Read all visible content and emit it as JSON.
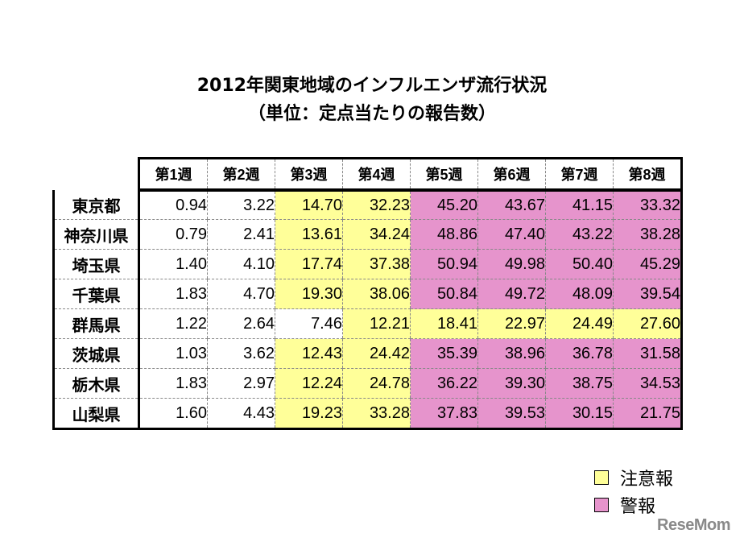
{
  "title": {
    "line1": "2012年関東地域のインフルエンザ流行状況",
    "line2": "（単位：定点当たりの報告数）"
  },
  "colors": {
    "caution": "#ffff99",
    "warning": "#e694cc",
    "normal": "#ffffff"
  },
  "legend": [
    {
      "label": "注意報",
      "color": "#ffff99"
    },
    {
      "label": "警報",
      "color": "#e694cc"
    }
  ],
  "watermark": "ReseMom",
  "chart_data": {
    "type": "table",
    "title": "2012年関東地域のインフルエンザ流行状況（単位：定点当たりの報告数）",
    "columns": [
      "第1週",
      "第2週",
      "第3週",
      "第4週",
      "第5週",
      "第6週",
      "第7週",
      "第8週"
    ],
    "rows": [
      {
        "name": "東京都",
        "values": [
          "0.94",
          "3.22",
          "14.70",
          "32.23",
          "45.20",
          "43.67",
          "41.15",
          "33.32"
        ],
        "levels": [
          "n",
          "n",
          "c",
          "c",
          "w",
          "w",
          "w",
          "w"
        ]
      },
      {
        "name": "神奈川県",
        "values": [
          "0.79",
          "2.41",
          "13.61",
          "34.24",
          "48.86",
          "47.40",
          "43.22",
          "38.28"
        ],
        "levels": [
          "n",
          "n",
          "c",
          "c",
          "w",
          "w",
          "w",
          "w"
        ]
      },
      {
        "name": "埼玉県",
        "values": [
          "1.40",
          "4.10",
          "17.74",
          "37.38",
          "50.94",
          "49.98",
          "50.40",
          "45.29"
        ],
        "levels": [
          "n",
          "n",
          "c",
          "c",
          "w",
          "w",
          "w",
          "w"
        ]
      },
      {
        "name": "千葉県",
        "values": [
          "1.83",
          "4.70",
          "19.30",
          "38.06",
          "50.84",
          "49.72",
          "48.09",
          "39.54"
        ],
        "levels": [
          "n",
          "n",
          "c",
          "c",
          "w",
          "w",
          "w",
          "w"
        ]
      },
      {
        "name": "群馬県",
        "values": [
          "1.22",
          "2.64",
          "7.46",
          "12.21",
          "18.41",
          "22.97",
          "24.49",
          "27.60"
        ],
        "levels": [
          "n",
          "n",
          "n",
          "c",
          "c",
          "c",
          "c",
          "c"
        ]
      },
      {
        "name": "茨城県",
        "values": [
          "1.03",
          "3.62",
          "12.43",
          "24.42",
          "35.39",
          "38.96",
          "36.78",
          "31.58"
        ],
        "levels": [
          "n",
          "n",
          "c",
          "c",
          "w",
          "w",
          "w",
          "w"
        ]
      },
      {
        "name": "栃木県",
        "values": [
          "1.83",
          "2.97",
          "12.24",
          "24.78",
          "36.22",
          "39.30",
          "38.75",
          "34.53"
        ],
        "levels": [
          "n",
          "n",
          "c",
          "c",
          "w",
          "w",
          "w",
          "w"
        ]
      },
      {
        "name": "山梨県",
        "values": [
          "1.60",
          "4.43",
          "19.23",
          "33.28",
          "37.83",
          "39.53",
          "30.15",
          "21.75"
        ],
        "levels": [
          "n",
          "n",
          "c",
          "c",
          "w",
          "w",
          "w",
          "w"
        ]
      }
    ],
    "legend": {
      "c": "注意報",
      "w": "警報"
    },
    "legend_position": "bottom-right"
  }
}
